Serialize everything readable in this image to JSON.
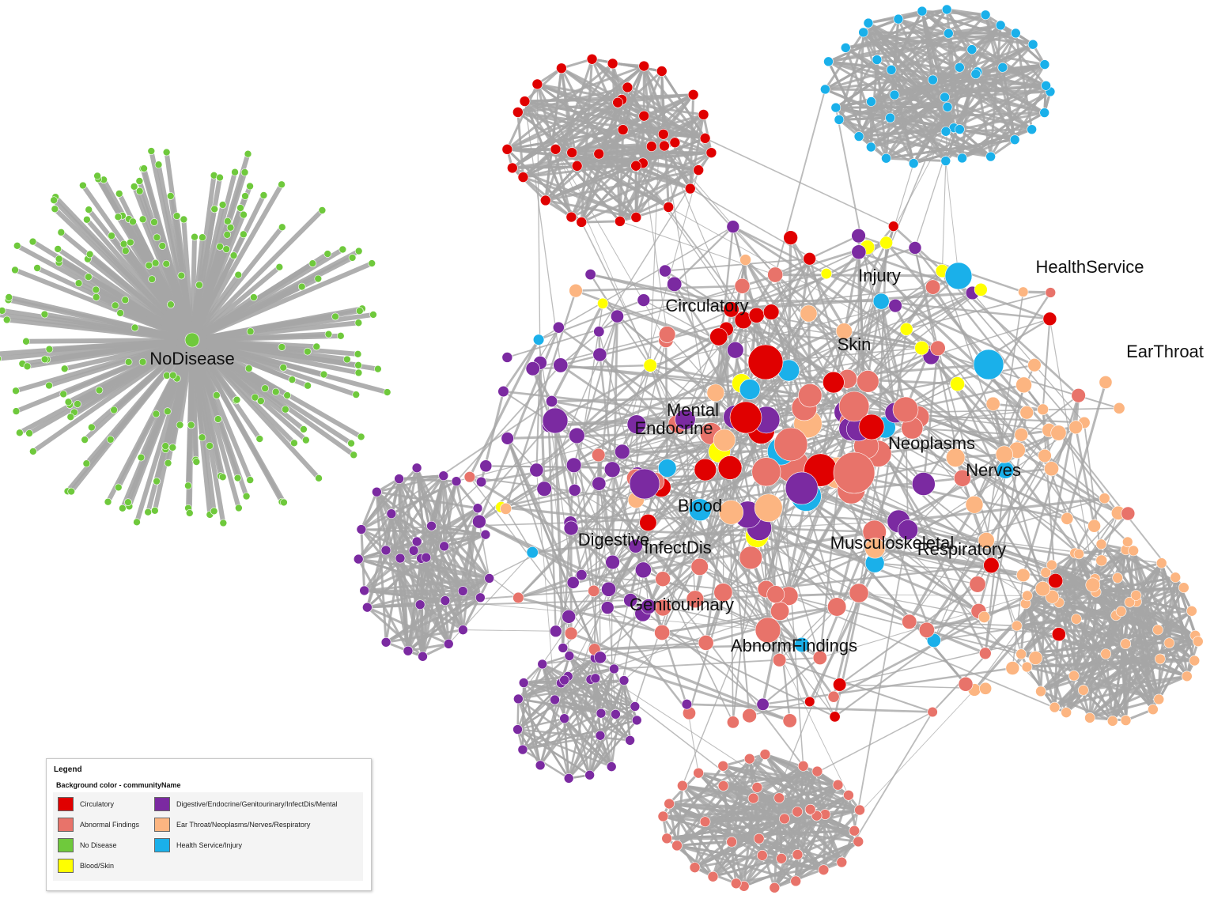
{
  "colors": {
    "Circulatory": "#e00000",
    "AbnormalFindings": "#e8736a",
    "NoDisease": "#6fc93c",
    "BloodSkin": "#ffff00",
    "DigestiveEtc": "#7b2aa1",
    "EarThroatEtc": "#fcb581",
    "HealthServiceInjury": "#1ab0ea",
    "edge": "#a6a6a6"
  },
  "labels": {
    "no_disease": "NoDisease",
    "circulatory": "Circulatory",
    "injury": "Injury",
    "health_service": "HealthService",
    "skin": "Skin",
    "ear_throat": "EarThroat",
    "mental": "Mental",
    "endocrine": "Endocrine",
    "neoplasms": "Neoplasms",
    "nerves": "Nerves",
    "blood": "Blood",
    "digestive": "Digestive",
    "infect_dis": "InfectDis",
    "musculoskeletal": "Musculoskeletal",
    "respiratory": "Respiratory",
    "genitourinary": "Genitourinary",
    "abnorm_findings": "AbnormFindings"
  },
  "legend": {
    "title": "Legend",
    "subtitle": "Background color - communityName",
    "items": [
      {
        "label": "Circulatory",
        "color_key": "Circulatory"
      },
      {
        "label": "Digestive/Endocrine/Genitourinary/InfectDis/Mental",
        "color_key": "DigestiveEtc"
      },
      {
        "label": "Abnormal Findings",
        "color_key": "AbnormalFindings"
      },
      {
        "label": "Ear Throat/Neoplasms/Nerves/Respiratory",
        "color_key": "EarThroatEtc"
      },
      {
        "label": "No Disease",
        "color_key": "NoDisease"
      },
      {
        "label": "Health Service/Injury",
        "color_key": "HealthServiceInjury"
      },
      {
        "label": "Blood/Skin",
        "color_key": "BloodSkin"
      }
    ]
  }
}
